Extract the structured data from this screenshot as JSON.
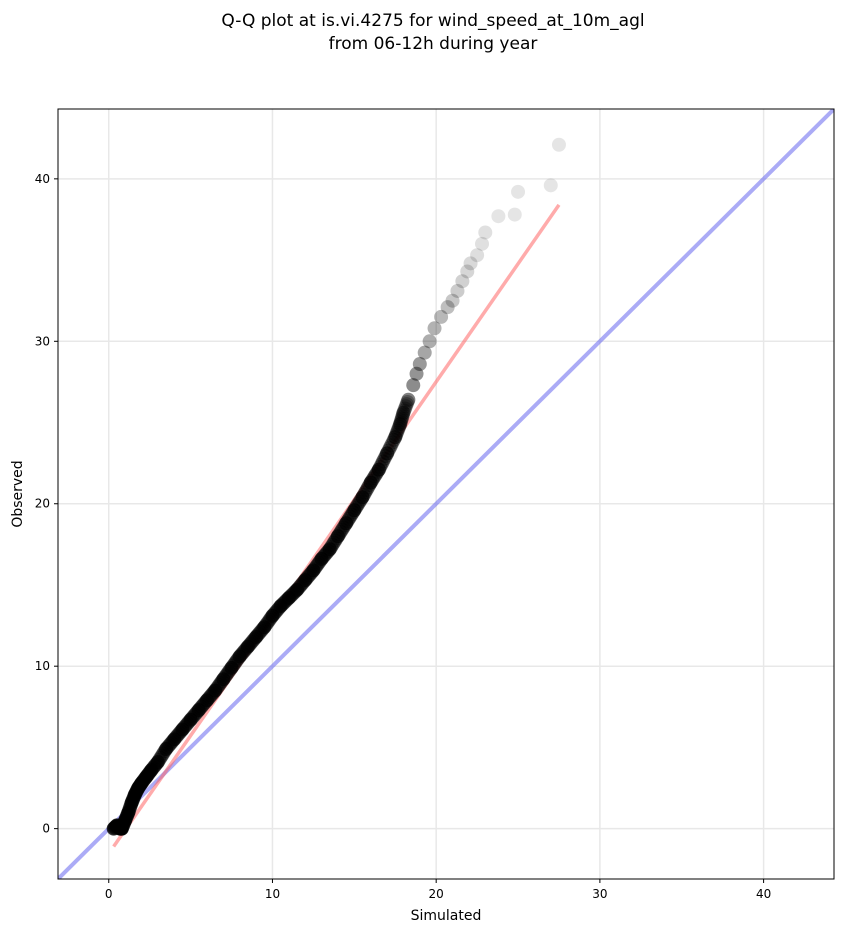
{
  "chart_data": {
    "type": "scatter",
    "title": [
      "Q-Q plot at is.vi.4275 for wind_speed_at_10m_agl",
      "from 06-12h during year"
    ],
    "xlabel": "Simulated",
    "ylabel": "Observed",
    "xlim": [
      -3.1,
      44.3
    ],
    "ylim": [
      -3.1,
      44.3
    ],
    "xticks": [
      0,
      10,
      20,
      30,
      40
    ],
    "yticks": [
      0,
      10,
      20,
      30,
      40
    ],
    "grid": true,
    "colors": {
      "points": "#000000",
      "fit_line": "#ff6666",
      "identity_line": "#6666ee",
      "grid": "#e8e8e8"
    },
    "identity_line": {
      "label": "",
      "x": [
        -3.1,
        44.3
      ],
      "y": [
        -3.1,
        44.3
      ]
    },
    "fit_line": {
      "label": "",
      "x": [
        0.3,
        27.5
      ],
      "y": [
        -1.1,
        38.4
      ]
    },
    "series": [
      {
        "x": [
          0.3,
          0.5,
          0.7,
          0.8,
          1.0,
          1.2,
          1.4,
          1.6,
          1.8,
          2.0,
          2.3,
          2.6,
          3.0,
          3.5,
          4.0,
          4.5,
          5.0,
          5.5,
          6.0,
          6.5,
          7.0,
          7.5,
          8.0,
          8.5,
          9.0,
          9.5,
          10.0,
          10.5,
          11.0,
          11.5,
          12.0,
          12.5,
          13.0,
          13.5,
          14.0,
          14.5,
          15.0,
          15.5,
          16.0,
          16.5,
          17.0,
          17.5,
          17.8,
          18.0,
          18.3,
          18.6,
          18.8,
          19.0,
          19.3,
          19.6,
          19.9,
          20.3,
          20.7,
          21.0,
          21.3,
          21.6,
          21.9,
          22.1,
          22.5,
          22.8,
          23.0,
          23.8,
          24.8,
          25.0,
          27.0,
          27.5
        ],
        "y": [
          0.0,
          0.2,
          0.0,
          0.0,
          0.5,
          1.0,
          1.6,
          2.1,
          2.5,
          2.8,
          3.2,
          3.6,
          4.1,
          4.9,
          5.5,
          6.1,
          6.7,
          7.3,
          7.9,
          8.5,
          9.2,
          9.9,
          10.6,
          11.2,
          11.8,
          12.4,
          13.1,
          13.7,
          14.2,
          14.7,
          15.3,
          15.9,
          16.6,
          17.2,
          18.0,
          18.8,
          19.6,
          20.4,
          21.3,
          22.1,
          23.1,
          24.1,
          24.9,
          25.6,
          26.4,
          27.3,
          28.0,
          28.6,
          29.3,
          30.0,
          30.8,
          31.5,
          32.1,
          32.5,
          33.1,
          33.7,
          34.3,
          34.8,
          35.3,
          36.0,
          36.7,
          37.7,
          37.8,
          39.2,
          39.6,
          42.1
        ],
        "alpha": [
          0.75,
          0.75,
          0.75,
          0.75,
          0.75,
          0.75,
          0.75,
          0.75,
          0.75,
          0.75,
          0.75,
          0.75,
          0.75,
          0.75,
          0.75,
          0.75,
          0.75,
          0.75,
          0.75,
          0.75,
          0.75,
          0.75,
          0.75,
          0.75,
          0.75,
          0.75,
          0.75,
          0.75,
          0.75,
          0.75,
          0.75,
          0.75,
          0.75,
          0.75,
          0.75,
          0.75,
          0.75,
          0.75,
          0.75,
          0.75,
          0.7,
          0.65,
          0.6,
          0.55,
          0.5,
          0.45,
          0.42,
          0.4,
          0.35,
          0.32,
          0.3,
          0.28,
          0.25,
          0.22,
          0.2,
          0.18,
          0.16,
          0.15,
          0.13,
          0.12,
          0.12,
          0.1,
          0.1,
          0.1,
          0.1,
          0.1
        ]
      }
    ]
  }
}
